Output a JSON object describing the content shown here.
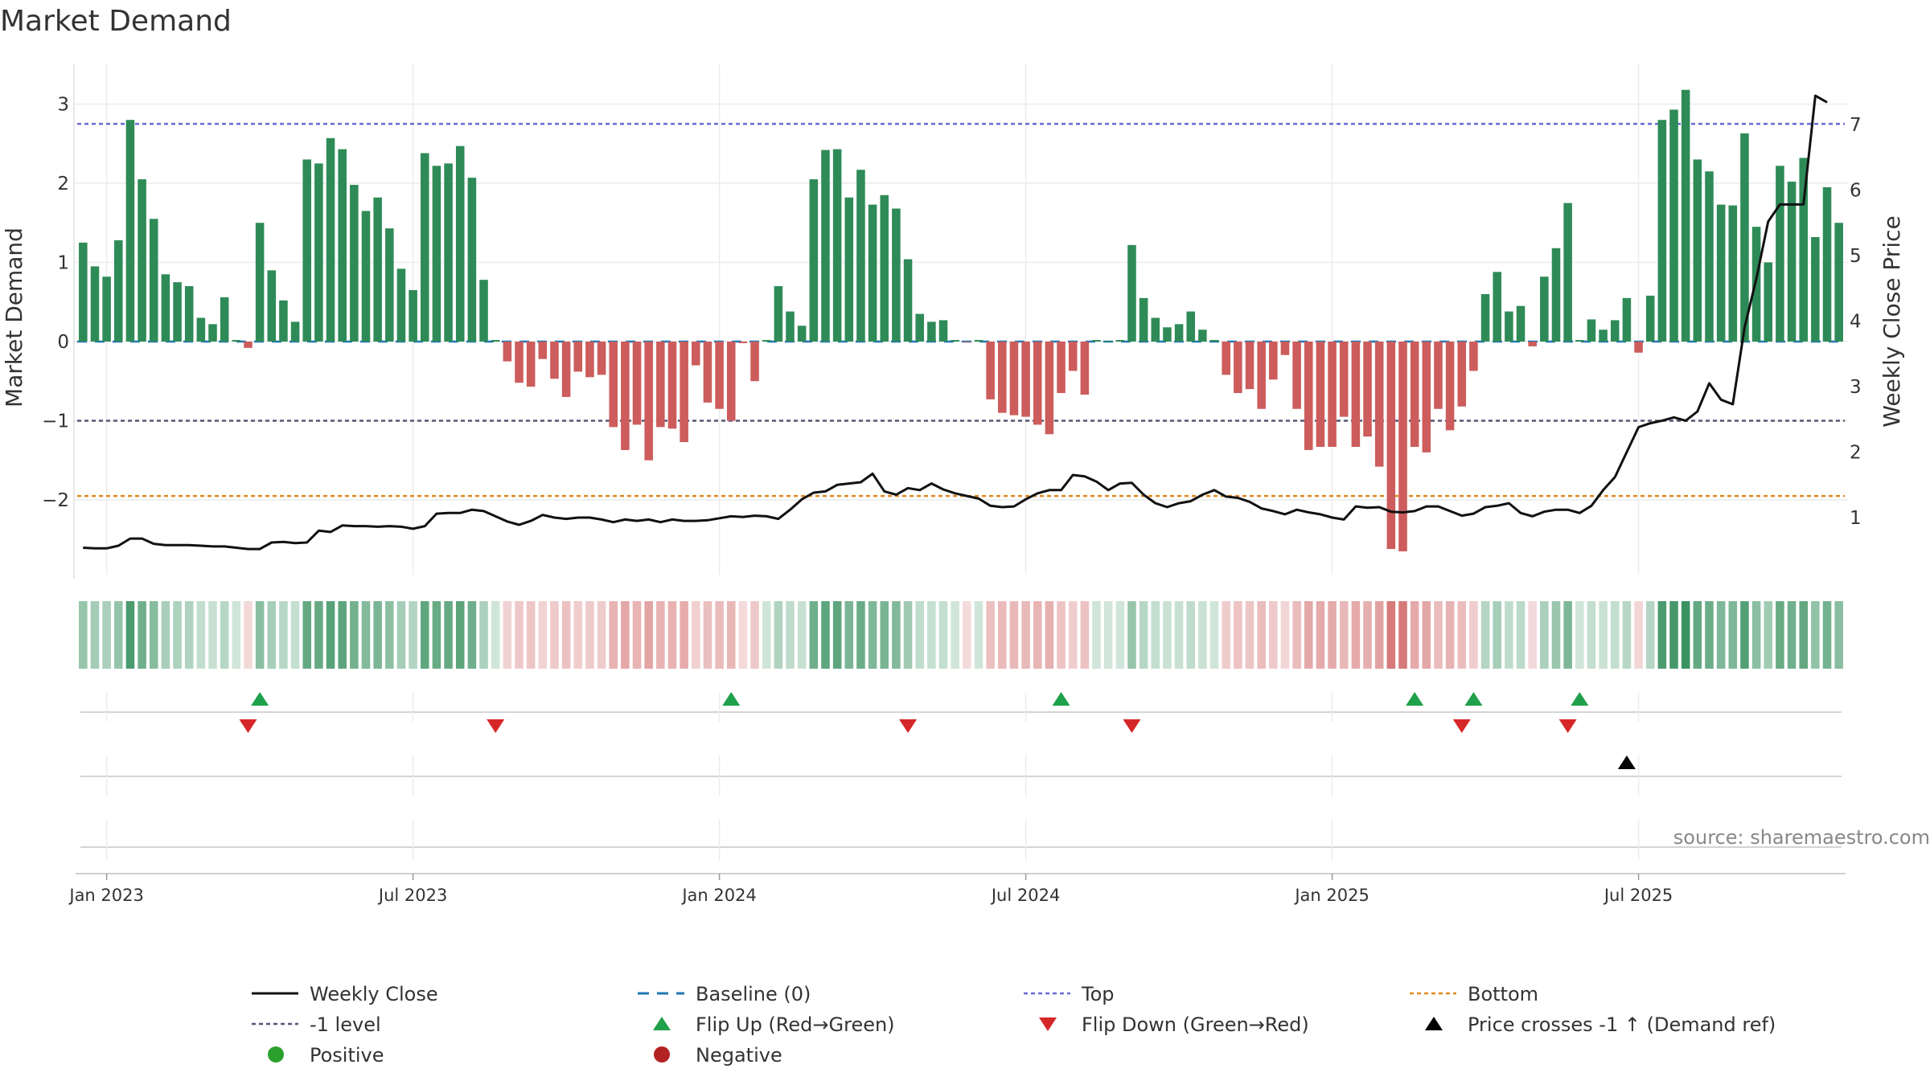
{
  "chart_data": {
    "type": "bar",
    "title": "Market Demand",
    "ylabel_left": "Market Demand",
    "ylabel_right": "Weekly Close Price",
    "ylim_left": [
      -2.9,
      3.5
    ],
    "ylim_right": [
      0.0,
      7.7
    ],
    "left_ticks": [
      {
        "v": 3,
        "l": "3"
      },
      {
        "v": 2,
        "l": "2"
      },
      {
        "v": 1,
        "l": "1"
      },
      {
        "v": 0,
        "l": "0"
      },
      {
        "v": -1,
        "l": "−1"
      },
      {
        "v": -2,
        "l": "−2"
      }
    ],
    "right_ticks": [
      {
        "v": 7,
        "l": "7"
      },
      {
        "v": 6,
        "l": "6"
      },
      {
        "v": 5,
        "l": "5"
      },
      {
        "v": 4,
        "l": "4"
      },
      {
        "v": 3,
        "l": "3"
      },
      {
        "v": 2,
        "l": "2"
      },
      {
        "v": 1,
        "l": "1"
      }
    ],
    "levels": {
      "top": 2.75,
      "minus_one": -1.0,
      "bottom": -1.95,
      "baseline": 0
    },
    "colors": {
      "positive": "#2e8b57",
      "negative": "#cd5c5c",
      "close": "#111111",
      "baseline": "#1f77b4",
      "top": "#6a6ad6",
      "minus_one": "#555577",
      "bottom": "#e08a1e",
      "flip_up": "#1fa04a",
      "flip_down": "#d62728",
      "cross": "#000000"
    },
    "x_ticks": [
      {
        "i": 2,
        "l": "Jan 2023"
      },
      {
        "i": 28,
        "l": "Jul 2023"
      },
      {
        "i": 54,
        "l": "Jan 2024"
      },
      {
        "i": 80,
        "l": "Jul 2024"
      },
      {
        "i": 106,
        "l": "Jan 2025"
      },
      {
        "i": 132,
        "l": "Jul 2025"
      }
    ],
    "demand": [
      1.25,
      0.95,
      0.82,
      1.28,
      2.8,
      2.05,
      1.55,
      0.85,
      0.75,
      0.7,
      0.3,
      0.22,
      0.56,
      0.02,
      -0.08,
      1.5,
      0.9,
      0.52,
      0.25,
      2.3,
      2.25,
      2.57,
      2.43,
      1.98,
      1.65,
      1.82,
      1.43,
      0.92,
      0.65,
      2.38,
      2.22,
      2.25,
      2.47,
      2.07,
      0.78,
      0.02,
      -0.25,
      -0.52,
      -0.57,
      -0.22,
      -0.47,
      -0.7,
      -0.38,
      -0.45,
      -0.42,
      -1.08,
      -1.37,
      -1.05,
      -1.5,
      -1.08,
      -1.1,
      -1.27,
      -0.3,
      -0.77,
      -0.85,
      -1.0,
      -0.02,
      -0.5,
      0.02,
      0.7,
      0.38,
      0.2,
      2.05,
      2.42,
      2.43,
      1.82,
      2.17,
      1.73,
      1.85,
      1.68,
      1.04,
      0.35,
      0.25,
      0.27,
      0.02,
      -0.01,
      0.02,
      -0.73,
      -0.9,
      -0.93,
      -0.95,
      -1.05,
      -1.17,
      -0.65,
      -0.37,
      -0.67,
      0.02,
      0.01,
      0.02,
      1.22,
      0.55,
      0.3,
      0.18,
      0.22,
      0.38,
      0.15,
      0.02,
      -0.42,
      -0.65,
      -0.6,
      -0.85,
      -0.48,
      -0.17,
      -0.85,
      -1.37,
      -1.33,
      -1.33,
      -0.95,
      -1.33,
      -1.2,
      -1.58,
      -2.62,
      -2.65,
      -1.33,
      -1.4,
      -0.85,
      -1.12,
      -0.82,
      -0.37,
      0.6,
      0.88,
      0.38,
      0.45,
      -0.06,
      0.82,
      1.18,
      1.75,
      0.02,
      0.28,
      0.15,
      0.27,
      0.55,
      -0.14,
      0.58,
      2.8,
      2.93,
      3.18,
      2.3,
      2.15,
      1.73,
      1.72,
      2.63,
      1.45,
      1.0,
      2.22,
      2.02,
      2.32,
      1.32,
      1.95,
      1.5
    ],
    "close": [
      0.54,
      0.53,
      0.53,
      0.57,
      0.68,
      0.68,
      0.6,
      0.58,
      0.58,
      0.58,
      0.57,
      0.56,
      0.56,
      0.54,
      0.52,
      0.52,
      0.62,
      0.63,
      0.61,
      0.62,
      0.8,
      0.78,
      0.88,
      0.87,
      0.87,
      0.86,
      0.87,
      0.86,
      0.83,
      0.87,
      1.06,
      1.07,
      1.07,
      1.12,
      1.1,
      1.02,
      0.94,
      0.89,
      0.95,
      1.04,
      1.0,
      0.98,
      1.0,
      1.0,
      0.97,
      0.93,
      0.97,
      0.95,
      0.97,
      0.93,
      0.97,
      0.95,
      0.95,
      0.96,
      0.99,
      1.02,
      1.01,
      1.03,
      1.02,
      0.98,
      1.12,
      1.28,
      1.38,
      1.4,
      1.5,
      1.52,
      1.54,
      1.67,
      1.4,
      1.35,
      1.45,
      1.42,
      1.52,
      1.43,
      1.37,
      1.33,
      1.29,
      1.18,
      1.16,
      1.17,
      1.28,
      1.37,
      1.42,
      1.42,
      1.65,
      1.63,
      1.55,
      1.42,
      1.52,
      1.53,
      1.35,
      1.22,
      1.16,
      1.22,
      1.25,
      1.35,
      1.42,
      1.32,
      1.3,
      1.24,
      1.14,
      1.1,
      1.05,
      1.12,
      1.08,
      1.05,
      1.0,
      0.97,
      1.17,
      1.15,
      1.16,
      1.09,
      1.08,
      1.1,
      1.17,
      1.17,
      1.1,
      1.03,
      1.06,
      1.16,
      1.18,
      1.22,
      1.07,
      1.02,
      1.09,
      1.12,
      1.12,
      1.07,
      1.18,
      1.42,
      1.62,
      2.0,
      2.38,
      2.44,
      2.48,
      2.53,
      2.48,
      2.62,
      3.05,
      2.8,
      2.73,
      3.9,
      4.65,
      5.52,
      5.78,
      5.78,
      5.78,
      7.44,
      7.34
    ],
    "flip_up_idx": [
      15,
      55,
      83,
      113,
      118,
      127
    ],
    "flip_down_idx": [
      14,
      35,
      70,
      89,
      117,
      126
    ],
    "cross_idx": [
      131
    ],
    "source": "source: sharemaestro.com",
    "legend": [
      {
        "type": "line",
        "label": "Weekly Close"
      },
      {
        "type": "baseline",
        "label": "Baseline (0)"
      },
      {
        "type": "top",
        "label": "Top"
      },
      {
        "type": "bottom",
        "label": "Bottom"
      },
      {
        "type": "minus_one",
        "label": "-1 level"
      },
      {
        "type": "flip_up",
        "label": "Flip Up (Red→Green)"
      },
      {
        "type": "flip_down",
        "label": "Flip Down (Green→Red)"
      },
      {
        "type": "cross",
        "label": "Price crosses -1 ↑ (Demand ref)"
      },
      {
        "type": "positive",
        "label": "Positive"
      },
      {
        "type": "negative",
        "label": "Negative"
      }
    ]
  }
}
